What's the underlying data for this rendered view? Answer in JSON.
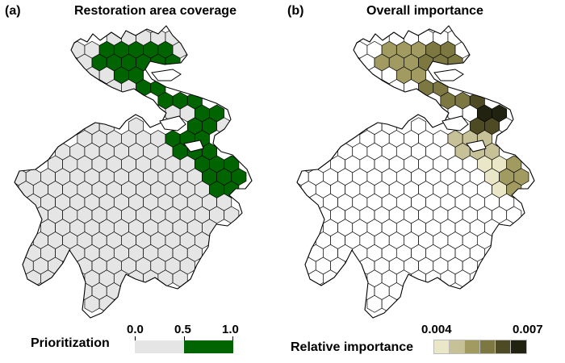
{
  "panel_a": {
    "letter": "(a)",
    "title": "Restoration area coverage",
    "legend": {
      "label": "Prioritization",
      "ticks": [
        "0.0",
        "0.5",
        "1.0"
      ],
      "colors": {
        "not_selected": "#e5e5e5",
        "selected": "#006400"
      }
    }
  },
  "panel_b": {
    "letter": "(b)",
    "title": "Overall importance",
    "legend": {
      "label": "Relative importance",
      "min_label": "0.004",
      "max_label": "0.007",
      "colors": [
        "#e9e7c7",
        "#c6c196",
        "#a19b62",
        "#7d7741",
        "#4e4a24",
        "#222211"
      ]
    }
  },
  "map_colors": {
    "land": "#ffffff",
    "water_outline": "#000000",
    "hex_unselected": "#e5e5e5"
  }
}
